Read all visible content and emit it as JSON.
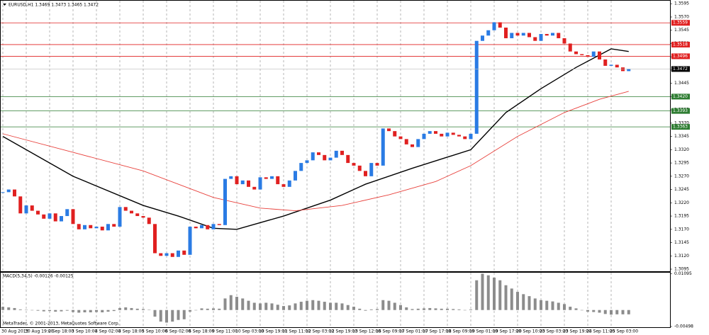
{
  "chart_data": {
    "type": "candlestick",
    "title": "EURUSD,H1 1.3469 1.3473 1.3465 1.3472",
    "categories": [
      "30 Aug 2013",
      null,
      null,
      null,
      "30 Aug 19:00",
      null,
      null,
      null,
      "2 Sep 18:00",
      null,
      null,
      null,
      "3 Sep 10:00",
      null,
      null,
      null,
      "4 Sep 02:00",
      null,
      null,
      null,
      "4 Sep 18:00",
      null,
      null,
      null,
      "5 Sep 10:00",
      null,
      null,
      null,
      "6 Sep 02:00",
      null,
      null,
      null,
      "6 Sep 18:00",
      null,
      null,
      null,
      "9 Sep 11:00",
      null,
      null,
      null,
      "10 Sep 03:00",
      null,
      null,
      null,
      "10 Sep 19:00",
      null,
      null,
      null,
      "11 Sep 11:00",
      null,
      null,
      null,
      "12 Sep 03:00",
      null,
      null,
      null,
      "12 Sep 19:00",
      null,
      null,
      null,
      "13 Sep 12:00",
      null,
      null,
      null,
      "16 Sep 09:00",
      null,
      null,
      null,
      "17 Sep 01:00",
      null,
      null,
      null,
      "17 Sep 17:00",
      null,
      null,
      null,
      "18 Sep 09:00",
      null,
      null,
      null,
      "19 Sep 01:00",
      null,
      null,
      null,
      "19 Sep 17:00",
      null,
      null,
      null,
      "20 Sep 10:00",
      null,
      null,
      null,
      "23 Sep 03:00",
      null,
      null,
      null,
      "23 Sep 19:00",
      null,
      null,
      null,
      "24 Sep 11:00",
      null,
      null,
      null,
      "25 Sep 03:00",
      null,
      null,
      null
    ],
    "close": [
      1.324,
      1.3245,
      1.3232,
      1.32,
      1.3215,
      1.3205,
      1.3198,
      1.319,
      1.32,
      1.3185,
      1.3195,
      1.3208,
      1.318,
      1.317,
      1.3178,
      1.3172,
      1.3175,
      1.3168,
      1.318,
      1.3175,
      1.3212,
      1.3205,
      1.32,
      1.3195,
      1.3192,
      1.318,
      1.3125,
      1.312,
      1.3125,
      1.3118,
      1.313,
      1.3122,
      1.3175,
      1.3172,
      1.3178,
      1.317,
      1.318,
      1.3178,
      1.3265,
      1.327,
      1.3255,
      1.3262,
      1.325,
      1.3245,
      1.3268,
      1.3265,
      1.327,
      1.3255,
      1.325,
      1.3262,
      1.328,
      1.3295,
      1.33,
      1.3315,
      1.331,
      1.33,
      1.3305,
      1.3318,
      1.331,
      1.3295,
      1.329,
      1.328,
      1.327,
      1.3295,
      1.329,
      1.336,
      1.3355,
      1.3345,
      1.334,
      1.333,
      1.3325,
      1.334,
      1.335,
      1.3355,
      1.335,
      1.3345,
      1.3352,
      1.3348,
      1.3345,
      1.334,
      1.335,
      1.3525,
      1.3535,
      1.3545,
      1.356,
      1.355,
      1.353,
      1.354,
      1.3535,
      1.354,
      1.3532,
      1.3525,
      1.3538,
      1.3535,
      1.354,
      1.353,
      1.352,
      1.3505,
      1.35,
      1.3498,
      1.3495,
      1.3505,
      1.349,
      1.3478,
      1.348,
      1.3475,
      1.3468,
      1.3472
    ],
    "colors": {
      "up": "#2a7be4",
      "down": "#e02020"
    },
    "ylim": [
      1.3091,
      1.3602
    ],
    "yticks": [
      1.3595,
      {
        "value": 1.357,
        "label": "1.3570"
      },
      1.3545,
      {
        "value": 1.352,
        "label": "1.3520"
      },
      1.3495,
      {
        "value": 1.347,
        "label": "1.3470"
      },
      1.3445,
      {
        "value": 1.342,
        "label": "1.3420"
      },
      1.3395,
      {
        "value": 1.337,
        "label": "1.3370"
      },
      1.3345,
      {
        "value": 1.332,
        "label": "1.3320"
      },
      1.3295,
      {
        "value": 1.327,
        "label": "1.3270"
      },
      1.3245,
      {
        "value": 1.322,
        "label": "1.3220"
      },
      1.3195,
      {
        "value": 1.317,
        "label": "1.3170"
      },
      1.3145,
      {
        "value": 1.312,
        "label": "1.3120"
      },
      1.3095
    ],
    "moving_averages": [
      {
        "color": "#000000",
        "x": [
          0,
          12,
          24,
          30,
          36,
          40,
          48,
          56,
          62,
          70,
          80,
          86,
          92,
          98,
          104,
          107
        ],
        "values": [
          1.3345,
          1.327,
          1.3215,
          1.3195,
          1.3172,
          1.317,
          1.3195,
          1.3225,
          1.3255,
          1.3285,
          1.332,
          1.339,
          1.3435,
          1.3475,
          1.351,
          1.3505
        ]
      },
      {
        "color": "#e8413c",
        "x": [
          0,
          12,
          24,
          36,
          44,
          50,
          58,
          66,
          74,
          80,
          88,
          96,
          102,
          107
        ],
        "values": [
          1.335,
          1.3315,
          1.328,
          1.323,
          1.321,
          1.3205,
          1.3215,
          1.3235,
          1.326,
          1.329,
          1.3345,
          1.339,
          1.3415,
          1.343
        ]
      }
    ],
    "levels": [
      {
        "price": 1.3559,
        "color": "#e02020"
      },
      {
        "price": 1.3518,
        "color": "#e02020"
      },
      {
        "price": 1.3496,
        "color": "#e02020"
      },
      {
        "price": {
          "value": 1.342,
          "label": "1.3420"
        },
        "color": "#2e7d32"
      },
      {
        "price": 1.3393,
        "color": "#2e7d32"
      },
      {
        "price": 1.3363,
        "color": "#2e7d32"
      }
    ],
    "last": 1.3472,
    "macd": {
      "title": "MACD(5,34,5) -0.00126 -0.00125",
      "color": "#8c8c8c",
      "ylim": [
        -0.0052,
        0.0113
      ],
      "yticks": [
        0.01095,
        -0.00498
      ],
      "values": [
        0.001,
        0.0008,
        0.0006,
        0.0002,
        0.0001,
        0,
        -0.0002,
        -0.0004,
        -0.0003,
        -0.0005,
        -0.0004,
        -0.0002,
        -0.0006,
        -0.0008,
        -0.0007,
        -0.0007,
        -0.0006,
        -0.0007,
        -0.0005,
        -0.0003,
        0.0006,
        0.0008,
        0.0006,
        0.0004,
        0.0003,
        0.0001,
        -0.002,
        -0.0035,
        -0.0038,
        -0.0035,
        -0.003,
        -0.0028,
        -0.0005,
        0,
        0.0005,
        0.0004,
        0.0005,
        0.0004,
        0.0035,
        0.0045,
        0.004,
        0.0035,
        0.0028,
        0.0022,
        0.002,
        0.0022,
        0.002,
        0.0016,
        0.0012,
        0.0014,
        0.002,
        0.0025,
        0.0028,
        0.003,
        0.0028,
        0.0025,
        0.0022,
        0.0022,
        0.002,
        0.0015,
        0.001,
        0.0004,
        -0.0002,
        0.0002,
        0.0003,
        0.003,
        0.0028,
        0.0022,
        0.0015,
        0.0008,
        0.0003,
        0.0004,
        0.0005,
        0.0006,
        0.0005,
        0.0004,
        0.0004,
        0.0003,
        0.0002,
        0,
        0.0002,
        0.009,
        0.011,
        0.0105,
        0.0098,
        0.009,
        0.0075,
        0.0065,
        0.0055,
        0.0048,
        0.0042,
        0.0035,
        0.003,
        0.0028,
        0.0026,
        0.0022,
        0.0018,
        0.001,
        0.0005,
        0,
        -0.0005,
        -0.0006,
        -0.0008,
        -0.0012,
        -0.0014,
        -0.0013,
        -0.0013,
        -0.0013
      ]
    },
    "copyright": "MetaTrader, © 2001-2013, MetaQuotes Software Corp."
  }
}
